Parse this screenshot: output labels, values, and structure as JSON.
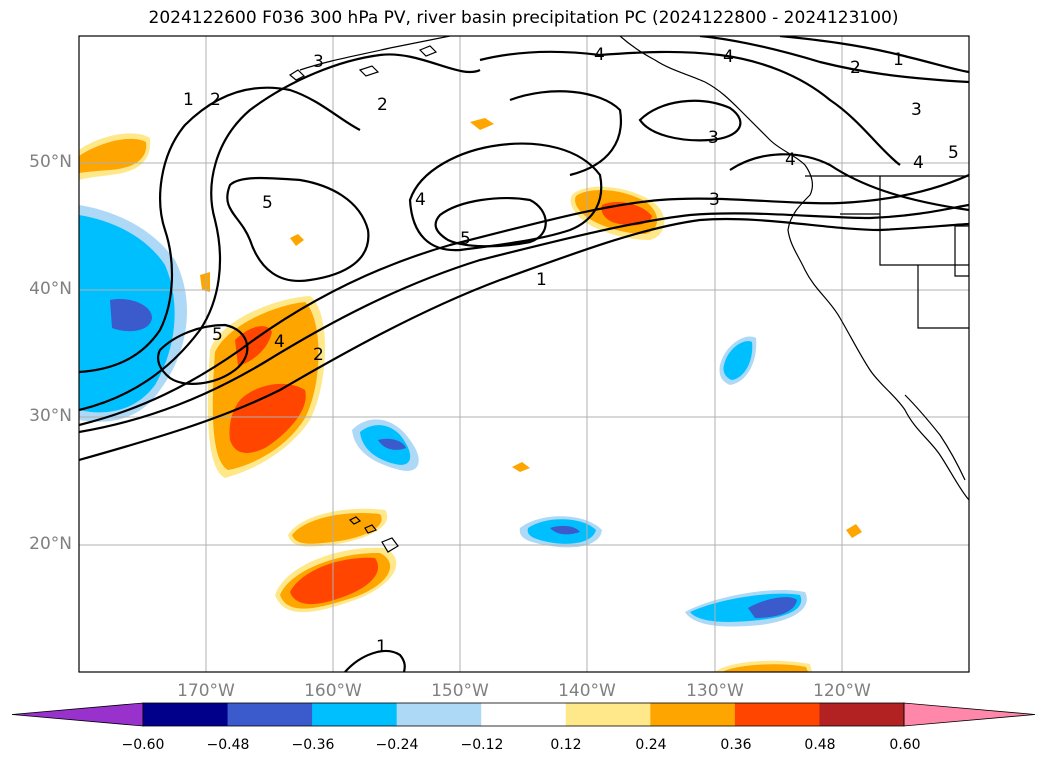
{
  "title": "2024122600 F036 300 hPa PV, river basin precipitation PC (2024122800 - 2024123100)",
  "map": {
    "lon_range": [
      -180,
      -110
    ],
    "lat_range": [
      10,
      60
    ],
    "lat_labels": [
      {
        "lat": 50,
        "label": "50°N"
      },
      {
        "lat": 40,
        "label": "40°N"
      },
      {
        "lat": 30,
        "label": "30°N"
      },
      {
        "lat": 20,
        "label": "20°N"
      }
    ],
    "lon_labels": [
      {
        "lon": -170,
        "label": "170°W"
      },
      {
        "lon": -160,
        "label": "160°W"
      },
      {
        "lon": -150,
        "label": "150°W"
      },
      {
        "lon": -140,
        "label": "140°W"
      },
      {
        "lon": -130,
        "label": "130°W"
      },
      {
        "lon": -120,
        "label": "120°W"
      }
    ],
    "contour_labels": [
      "1",
      "2",
      "3",
      "4",
      "5"
    ],
    "contour_color": "#000000",
    "coastline_color": "#000000",
    "grid_color": "#b0b0b0",
    "latlon_label_color": "#808080"
  },
  "colorbar": {
    "levels": [
      "−0.60",
      "−0.48",
      "−0.36",
      "−0.24",
      "−0.12",
      "0.12",
      "0.24",
      "0.36",
      "0.48",
      "0.60"
    ],
    "colors": [
      "#9932cc",
      "#00008b",
      "#3b5bcc",
      "#00bfff",
      "#add8f6",
      "#ffffff",
      "#ffe88a",
      "#ffa500",
      "#ff4500",
      "#b22222",
      "#ff88aa"
    ]
  }
}
